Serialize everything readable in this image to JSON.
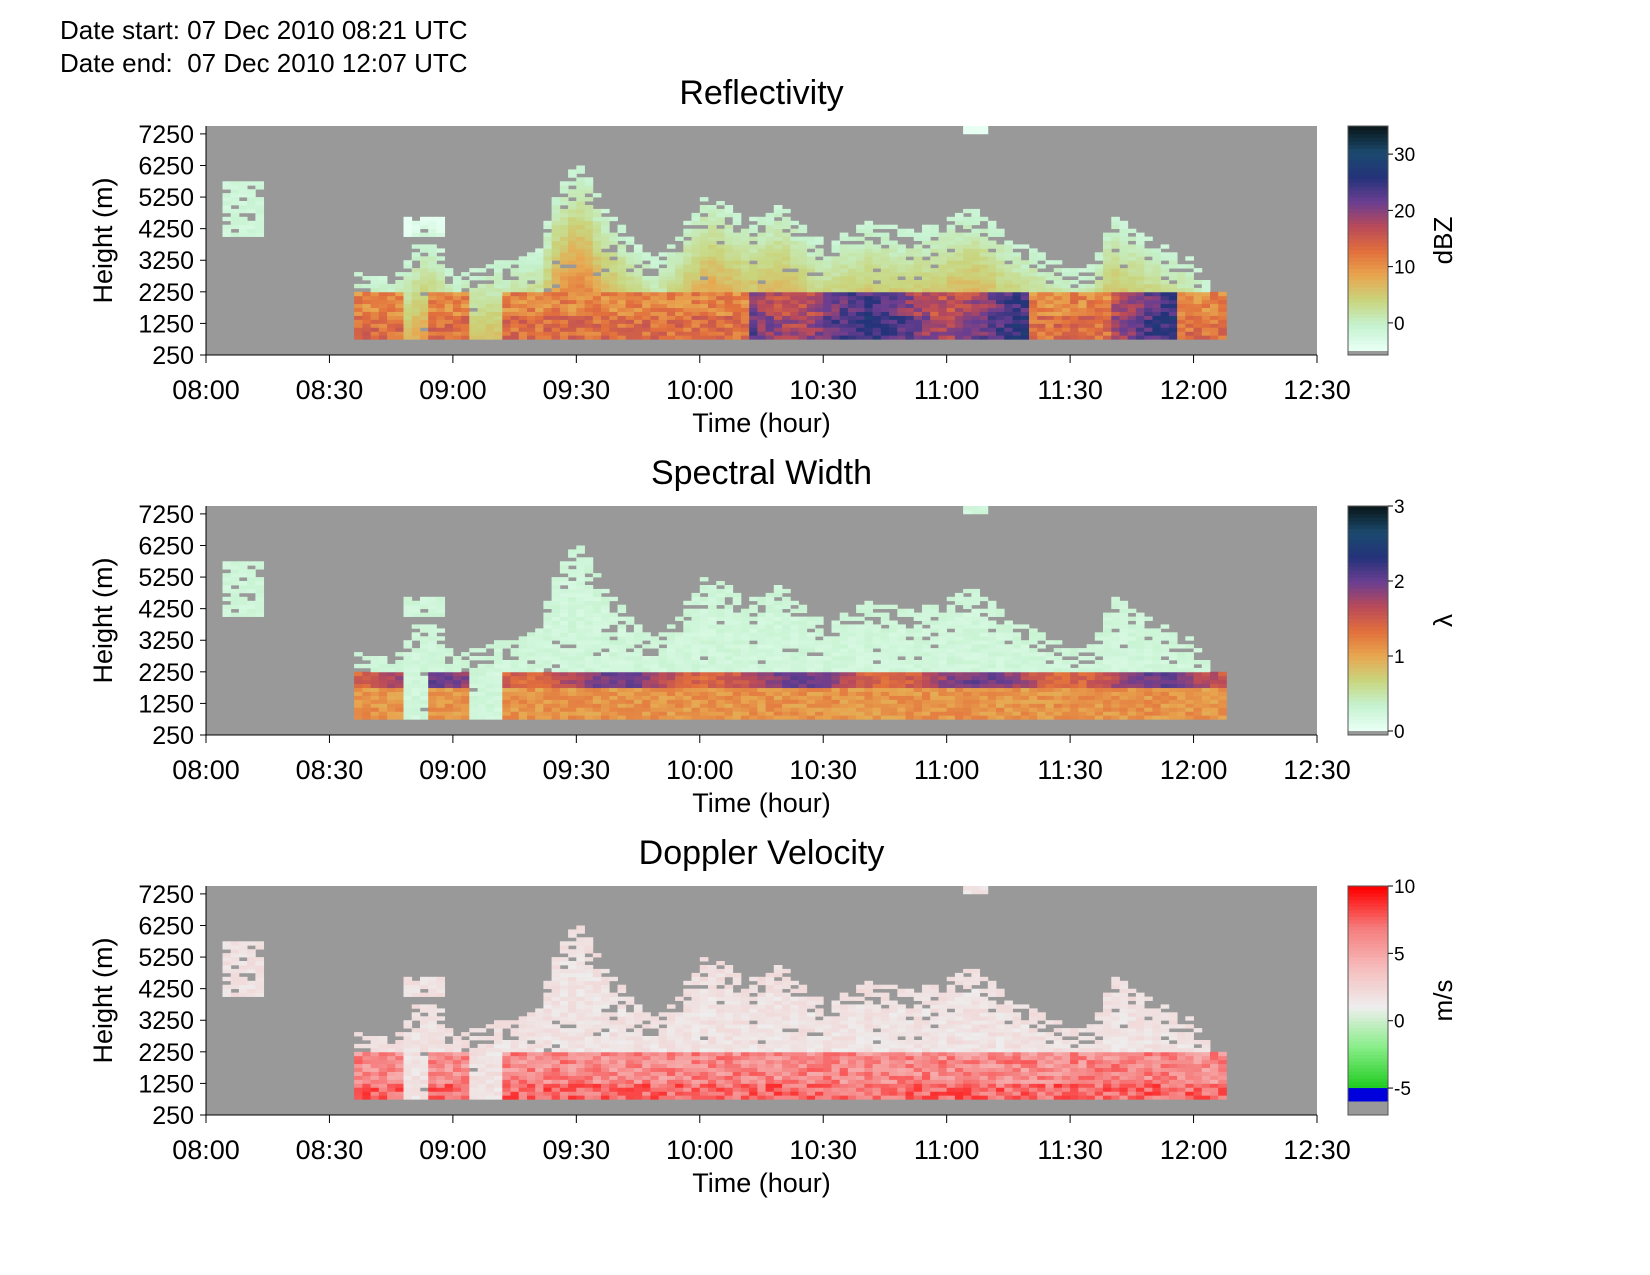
{
  "header": {
    "date_start": "Date start: 07 Dec 2010 08:21 UTC",
    "date_end": "Date end:  07 Dec 2010 12:07 UTC"
  },
  "colors": {
    "background_nodata": "#999999",
    "reflectivity_scale": [
      "#e8fff4",
      "#c5f2cf",
      "#c9d57d",
      "#e8a64f",
      "#e26f3c",
      "#b94a5a",
      "#6a3e91",
      "#24337a",
      "#1b4a6f",
      "#0a1a1e"
    ],
    "spectral_scale": [
      "#e8fff4",
      "#c5f2cf",
      "#c9d57d",
      "#e8a64f",
      "#e26f3c",
      "#b94a5a",
      "#6a3e91",
      "#24337a",
      "#1b4a6f",
      "#0a1a1e"
    ],
    "velocity_scale": [
      "#0000ff",
      "#22cc22",
      "#88ee88",
      "#eeeeee",
      "#f6bcbc",
      "#f67c7c",
      "#ff0000"
    ]
  },
  "chart_data": [
    {
      "type": "heatmap",
      "title": "Reflectivity",
      "xlabel": "Time (hour)",
      "ylabel": "Height (m)",
      "x_ticks": [
        "08:00",
        "08:30",
        "09:00",
        "09:30",
        "10:00",
        "10:30",
        "11:00",
        "11:30",
        "12:00",
        "12:30"
      ],
      "y_ticks": [
        "250",
        "1250",
        "2250",
        "3250",
        "4250",
        "5250",
        "6250",
        "7250"
      ],
      "xlim": [
        "08:00",
        "12:30"
      ],
      "ylim": [
        250,
        7500
      ],
      "colorbar": {
        "label": "dBZ",
        "ticks": [
          "0",
          "10",
          "20",
          "30"
        ],
        "range": [
          -5,
          35
        ]
      },
      "field": "reflectivity"
    },
    {
      "type": "heatmap",
      "title": "Spectral Width",
      "xlabel": "Time (hour)",
      "ylabel": "Height (m)",
      "x_ticks": [
        "08:00",
        "08:30",
        "09:00",
        "09:30",
        "10:00",
        "10:30",
        "11:00",
        "11:30",
        "12:00",
        "12:30"
      ],
      "y_ticks": [
        "250",
        "1250",
        "2250",
        "3250",
        "4250",
        "5250",
        "6250",
        "7250"
      ],
      "xlim": [
        "08:00",
        "12:30"
      ],
      "ylim": [
        250,
        7500
      ],
      "colorbar": {
        "label": "λ",
        "ticks": [
          "0",
          "1",
          "2",
          "3"
        ],
        "range": [
          0,
          3
        ]
      },
      "field": "spectral"
    },
    {
      "type": "heatmap",
      "title": "Doppler Velocity",
      "xlabel": "Time (hour)",
      "ylabel": "Height (m)",
      "x_ticks": [
        "08:00",
        "08:30",
        "09:00",
        "09:30",
        "10:00",
        "10:30",
        "11:00",
        "11:30",
        "12:00",
        "12:30"
      ],
      "y_ticks": [
        "250",
        "1250",
        "2250",
        "3250",
        "4250",
        "5250",
        "6250",
        "7250"
      ],
      "xlim": [
        "08:00",
        "12:30"
      ],
      "ylim": [
        250,
        7500
      ],
      "colorbar": {
        "label": "m/s",
        "ticks": [
          "-5",
          "0",
          "5",
          "10"
        ],
        "range": [
          -7,
          10
        ]
      },
      "field": "velocity"
    }
  ]
}
